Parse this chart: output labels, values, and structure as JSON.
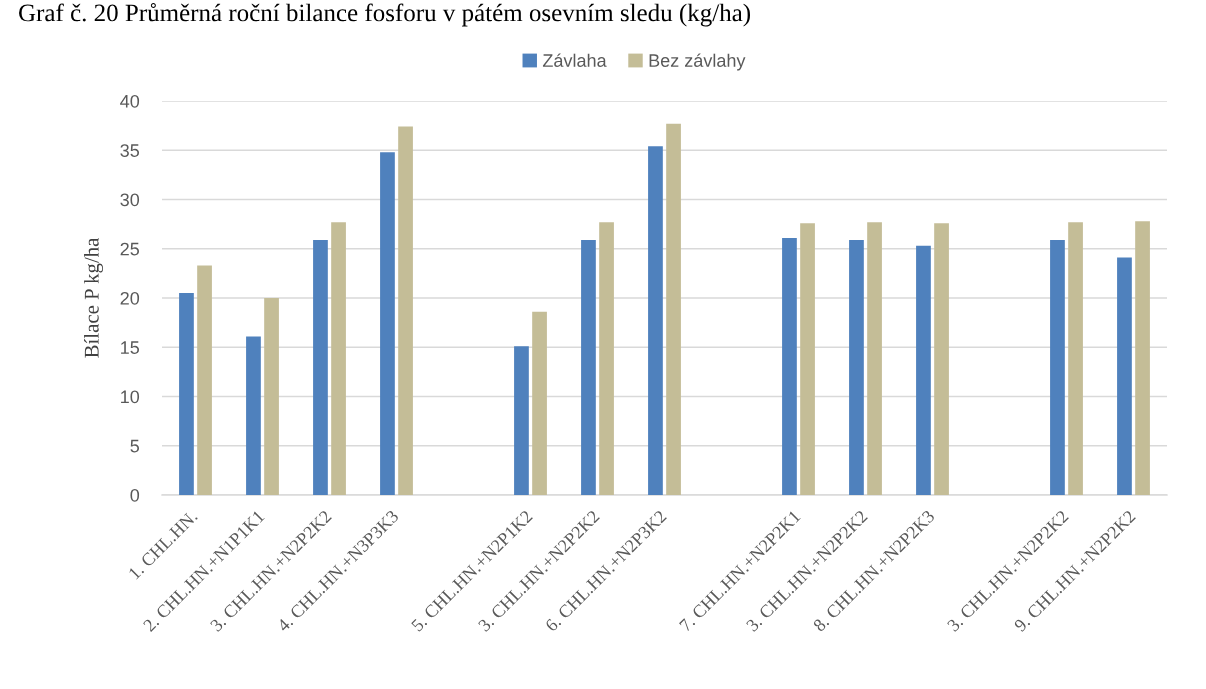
{
  "chart_data": {
    "type": "bar",
    "title": "Graf č. 20 Průměrná roční bilance fosforu v pátém osevním sledu (kg/ha)",
    "ylabel": "Bílace P kg/ha",
    "categories": [
      "1. CHL.HN.",
      "2. CHL.HN.+N1P1K1",
      "3. CHL.HN.+N2P2K2",
      "4. CHL.HN.+N3P3K3",
      null,
      "5. CHL.HN.+N2P1K2",
      "3. CHL.HN.+N2P2K2",
      "6. CHL.HN.+N2P3K2",
      null,
      "7. CHL.HN.+N2P2K1",
      "3. CHL.HN.+N2P2K2",
      "8. CHL.HN.+N2P2K3",
      null,
      "3. CHL.HN.+N2P2K2",
      "9. CHL.HN.+N2P2K2"
    ],
    "series": [
      {
        "name": "Závlaha",
        "color": "#4f81bd",
        "values": [
          20.5,
          16.1,
          25.9,
          34.8,
          null,
          15.1,
          25.9,
          35.4,
          null,
          26.1,
          25.9,
          25.3,
          null,
          25.9,
          24.1
        ]
      },
      {
        "name": "Bez závlahy",
        "color": "#c4bd97",
        "values": [
          23.3,
          20.0,
          27.7,
          37.4,
          null,
          18.6,
          27.7,
          37.7,
          null,
          27.6,
          27.7,
          27.6,
          null,
          27.7,
          27.8
        ]
      }
    ],
    "ylim": [
      0,
      40
    ],
    "yticks": [
      0,
      5,
      10,
      15,
      20,
      25,
      30,
      35,
      40
    ],
    "grid": "y",
    "legend": "top"
  }
}
